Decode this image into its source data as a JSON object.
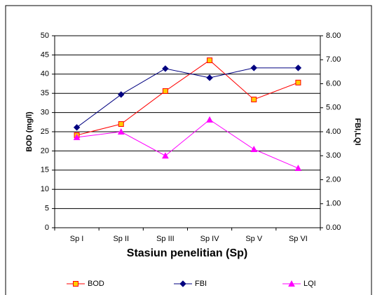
{
  "chart_data": {
    "type": "line",
    "x_label": "Stasiun penelitian (Sp)",
    "y_label": "BOD (mg/l)",
    "y2_label": "FBI,LQI",
    "categories": [
      "Sp I",
      "Sp II",
      "Sp III",
      "Sp IV",
      "Sp V",
      "Sp VI"
    ],
    "series": [
      {
        "name": "BOD",
        "color": "#ff0000",
        "marker": "square",
        "marker_fill": "#ffcc00",
        "values": [
          24.1,
          27.0,
          35.6,
          43.6,
          33.4,
          37.8
        ]
      },
      {
        "name": "FBI",
        "color": "#000080",
        "marker": "diamond",
        "marker_fill": "#000080",
        "axis": "y2",
        "values": [
          4.18,
          5.55,
          6.63,
          6.25,
          6.66,
          6.66
        ]
      },
      {
        "name": "LQI",
        "color": "#ff00ff",
        "marker": "triangle",
        "marker_fill": "#ff00ff",
        "axis": "y2",
        "values": [
          3.77,
          4.0,
          3.0,
          4.5,
          3.27,
          2.48
        ]
      }
    ],
    "ylim": [
      0,
      50
    ],
    "yticks": [
      0,
      5,
      10,
      15,
      20,
      25,
      30,
      35,
      40,
      45,
      50
    ],
    "y2lim": [
      0,
      8
    ],
    "y2ticks": [
      {
        "value": 0,
        "label": "0.00"
      },
      {
        "value": 1,
        "label": "1.00"
      },
      {
        "value": 2,
        "label": "2.00"
      },
      {
        "value": 3,
        "label": "3.00"
      },
      {
        "value": 4,
        "label": "4.00"
      },
      {
        "value": 5,
        "label": "5.00"
      },
      {
        "value": 6,
        "label": "6.00"
      },
      {
        "value": 7,
        "label": "7.00"
      },
      {
        "value": 8,
        "label": "8.00"
      }
    ],
    "grid": true,
    "legend": "bottom"
  }
}
